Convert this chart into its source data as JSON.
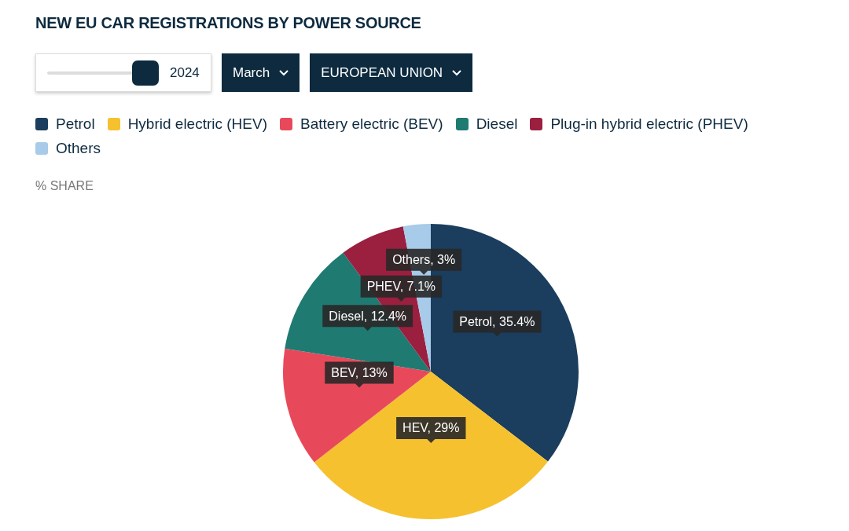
{
  "chart_data": {
    "type": "pie",
    "title": "NEW EU CAR REGISTRATIONS BY POWER SOURCE",
    "subtitle": "% SHARE",
    "annotations": [
      "2024",
      "March",
      "EUROPEAN UNION"
    ],
    "categories": [
      "Petrol",
      "Hybrid electric (HEV)",
      "Battery electric (BEV)",
      "Diesel",
      "Plug-in hybrid electric (PHEV)",
      "Others"
    ],
    "values": [
      35.4,
      29,
      13,
      12.4,
      7.1,
      3
    ],
    "value_labels": [
      "Petrol, 35.4%",
      "HEV, 29%",
      "BEV, 13%",
      "Diesel, 12.4%",
      "PHEV, 7.1%",
      "Others, 3%"
    ],
    "colors": [
      "#1b3d5e",
      "#f5c12e",
      "#e8495a",
      "#1f7a72",
      "#9b1f3f",
      "#a7cbe8"
    ],
    "legend": "top"
  }
}
